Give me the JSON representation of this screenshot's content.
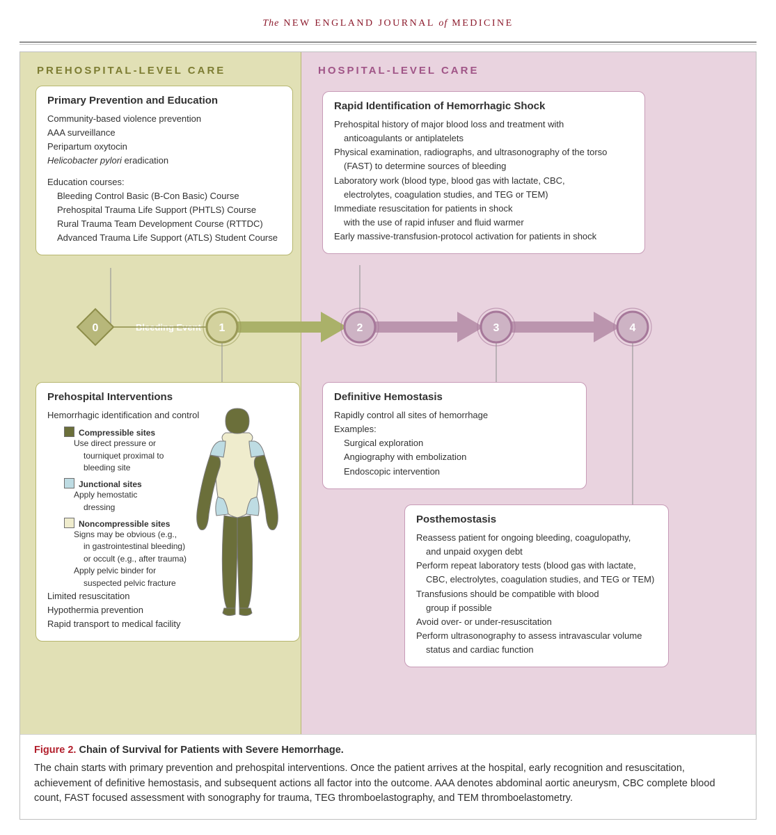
{
  "journal": {
    "pre": "The",
    "mid1": "NEW ENGLAND JOURNAL",
    "of": "of",
    "mid2": "MEDICINE",
    "color": "#8c1a2c"
  },
  "layout": {
    "left_width": 404,
    "left_bg": "#e1e0b5",
    "left_border": "#b6b66f",
    "left_head_color": "#7c7c32",
    "right_bg": "#e9d3df",
    "right_border": "#c79bb7",
    "right_head_color": "#a05587"
  },
  "headings": {
    "left": "PREHOSPITAL-LEVEL CARE",
    "right": "HOSPITAL-LEVEL CARE"
  },
  "flow": {
    "diamond_label": "0",
    "event_label": "Bleeding Event",
    "circles": [
      "1",
      "2",
      "3",
      "4"
    ],
    "diamond_fill": "#b7b77a",
    "diamond_stroke": "#8d8d49",
    "c1_fill": "#d3d29e",
    "c1_stroke": "#9a9a58",
    "c2_fill": "#cdb3c4",
    "c2_stroke": "#a6789a",
    "c34_fill": "#cdb3c4",
    "c34_stroke": "#a6789a",
    "text_white": "#ffffff",
    "arrow_left_fill": "#aab169",
    "arrow_right_fill": "#bb95ae",
    "connector": "#9a9a9a"
  },
  "cards": {
    "prevention": {
      "title": "Primary Prevention and Education",
      "lines": [
        "Community-based violence prevention",
        "AAA surveillance",
        "Peripartum oxytocin"
      ],
      "hpylori_pre": "Helicobacter pylori",
      "hpylori_post": " eradication",
      "edu_head": "Education courses:",
      "edu": [
        "Bleeding Control Basic (B-Con Basic) Course",
        "Prehospital Trauma Life Support (PHTLS) Course",
        "Rural Trauma Team Development Course (RTTDC)",
        "Advanced Trauma Life Support (ATLS) Student Course"
      ]
    },
    "interventions": {
      "title": "Prehospital Interventions",
      "lead": "Hemorrhagic identification and control",
      "legend": [
        {
          "color": "#6b6f3a",
          "title": "Compressible sites",
          "text": [
            "Use direct pressure or",
            "tourniquet proximal to",
            "bleeding site"
          ]
        },
        {
          "color": "#bedce3",
          "title": "Junctional sites",
          "text": [
            "Apply hemostatic",
            "dressing"
          ]
        },
        {
          "color": "#efeccd",
          "title": "Noncompressible sites",
          "text": [
            "Signs may be obvious (e.g.,",
            "in gastrointestinal bleeding)",
            "or occult (e.g., after trauma)",
            "Apply pelvic binder for",
            "suspected pelvic fracture"
          ]
        }
      ],
      "tail": [
        "Limited resuscitation",
        "Hypothermia prevention",
        "Rapid transport to medical facility"
      ],
      "body_colors": {
        "comp": "#6b6f3a",
        "junc": "#bedce3",
        "nonc": "#efeccd",
        "outline": "#7a7a7a"
      }
    },
    "rapid": {
      "title": "Rapid Identification of Hemorrhagic Shock",
      "lines": [
        [
          "Prehospital history of major blood loss and treatment with",
          "anticoagulants or antiplatelets"
        ],
        [
          "Physical examination, radiographs, and ultrasonography of the torso",
          "(FAST) to determine sources of bleeding"
        ],
        [
          "Laboratory work (blood type, blood gas with lactate, CBC,",
          "electrolytes, coagulation studies, and TEG or TEM)"
        ],
        [
          "Immediate resuscitation for patients in shock",
          "with the use of rapid infuser and fluid warmer"
        ],
        [
          "Early massive-transfusion-protocol activation for patients in shock"
        ]
      ]
    },
    "definitive": {
      "title": "Definitive Hemostasis",
      "lines": [
        "Rapidly control all sites of hemorrhage",
        "Examples:"
      ],
      "sub": [
        "Surgical exploration",
        "Angiography with embolization",
        "Endoscopic intervention"
      ]
    },
    "post": {
      "title": "Posthemostasis",
      "lines": [
        [
          "Reassess patient for ongoing bleeding, coagulopathy,",
          "and unpaid oxygen debt"
        ],
        [
          "Perform repeat laboratory tests (blood gas with lactate,",
          "CBC, electrolytes, coagulation studies, and TEG or TEM)"
        ],
        [
          "Transfusions should be compatible with blood",
          "group if possible"
        ],
        [
          "Avoid over- or under-resuscitation"
        ],
        [
          "Perform ultrasonography to assess intravascular volume",
          "status and cardiac function"
        ]
      ]
    }
  },
  "caption": {
    "label": "Figure 2.",
    "label_color": "#b21f2c",
    "title": " Chain of Survival for Patients with Severe Hemorrhage.",
    "text": "The chain starts with primary prevention and prehospital interventions. Once the patient arrives at the hospital, early recognition and resuscitation, achievement of definitive hemostasis, and subsequent actions all factor into the outcome. AAA denotes abdominal aortic aneurysm, CBC complete blood count, FAST focused assessment with sonography for trauma, TEG thromboelastography, and TEM thromboelastometry."
  }
}
